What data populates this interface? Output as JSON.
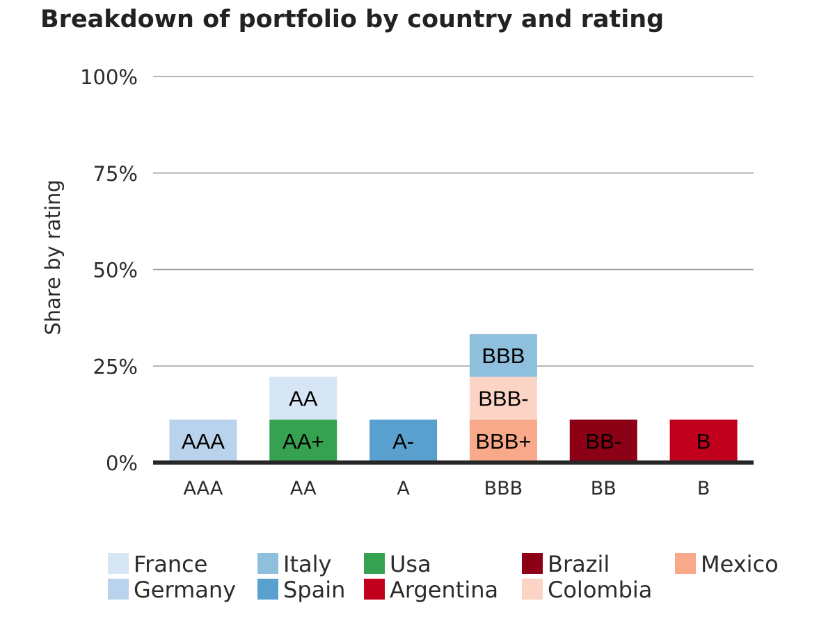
{
  "chart_data": {
    "type": "bar",
    "stacked": true,
    "title": "Breakdown of portfolio by country and rating",
    "ylabel": "Share by rating",
    "xlabel": "",
    "ylim": [
      0,
      1
    ],
    "yticks": [
      {
        "value": 0,
        "label": "0%"
      },
      {
        "value": 0.25,
        "label": "25%"
      },
      {
        "value": 0.5,
        "label": "50%"
      },
      {
        "value": 0.75,
        "label": "75%"
      },
      {
        "value": 1,
        "label": "100%"
      }
    ],
    "grid": true,
    "legend": "bottom",
    "categories": [
      "AAA",
      "AA",
      "A",
      "BBB",
      "BB",
      "B"
    ],
    "series": [
      {
        "name": "France",
        "color": "#d6e6f5",
        "values": [
          0,
          0.111,
          0,
          0,
          0,
          0
        ]
      },
      {
        "name": "Germany",
        "color": "#bad3ec",
        "values": [
          0.111,
          0,
          0,
          0,
          0,
          0
        ]
      },
      {
        "name": "Italy",
        "color": "#8ebfdc",
        "values": [
          0,
          0,
          0,
          0.111,
          0,
          0
        ]
      },
      {
        "name": "Spain",
        "color": "#5aa0cf",
        "values": [
          0,
          0,
          0.111,
          0,
          0,
          0
        ]
      },
      {
        "name": "Usa",
        "color": "#36a150",
        "values": [
          0,
          0.111,
          0,
          0,
          0,
          0
        ]
      },
      {
        "name": "Argentina",
        "color": "#c0001d",
        "values": [
          0,
          0,
          0,
          0,
          0,
          0.111
        ]
      },
      {
        "name": "Brazil",
        "color": "#8b0015",
        "values": [
          0,
          0,
          0,
          0,
          0.111,
          0
        ]
      },
      {
        "name": "Colombia",
        "color": "#fcd4c5",
        "values": [
          0,
          0,
          0,
          0.111,
          0,
          0
        ]
      },
      {
        "name": "Mexico",
        "color": "#f8a98a",
        "values": [
          0,
          0,
          0,
          0.111,
          0,
          0
        ]
      }
    ],
    "segments": [
      {
        "category": "AAA",
        "series": "Germany",
        "label": "AAA",
        "value": 0.111
      },
      {
        "category": "AA",
        "series": "Usa",
        "label": "AA+",
        "value": 0.111
      },
      {
        "category": "AA",
        "series": "France",
        "label": "AA",
        "value": 0.111
      },
      {
        "category": "A",
        "series": "Spain",
        "label": "A-",
        "value": 0.111
      },
      {
        "category": "BBB",
        "series": "Mexico",
        "label": "BBB+",
        "value": 0.111
      },
      {
        "category": "BBB",
        "series": "Colombia",
        "label": "BBB-",
        "value": 0.111
      },
      {
        "category": "BBB",
        "series": "Italy",
        "label": "BBB",
        "value": 0.111
      },
      {
        "category": "BB",
        "series": "Brazil",
        "label": "BB-",
        "value": 0.111
      },
      {
        "category": "B",
        "series": "Argentina",
        "label": "B",
        "value": 0.111
      }
    ],
    "legend_items": [
      "France",
      "Germany",
      "Italy",
      "Spain",
      "Usa",
      "Argentina",
      "Brazil",
      "Colombia",
      "Mexico"
    ]
  }
}
